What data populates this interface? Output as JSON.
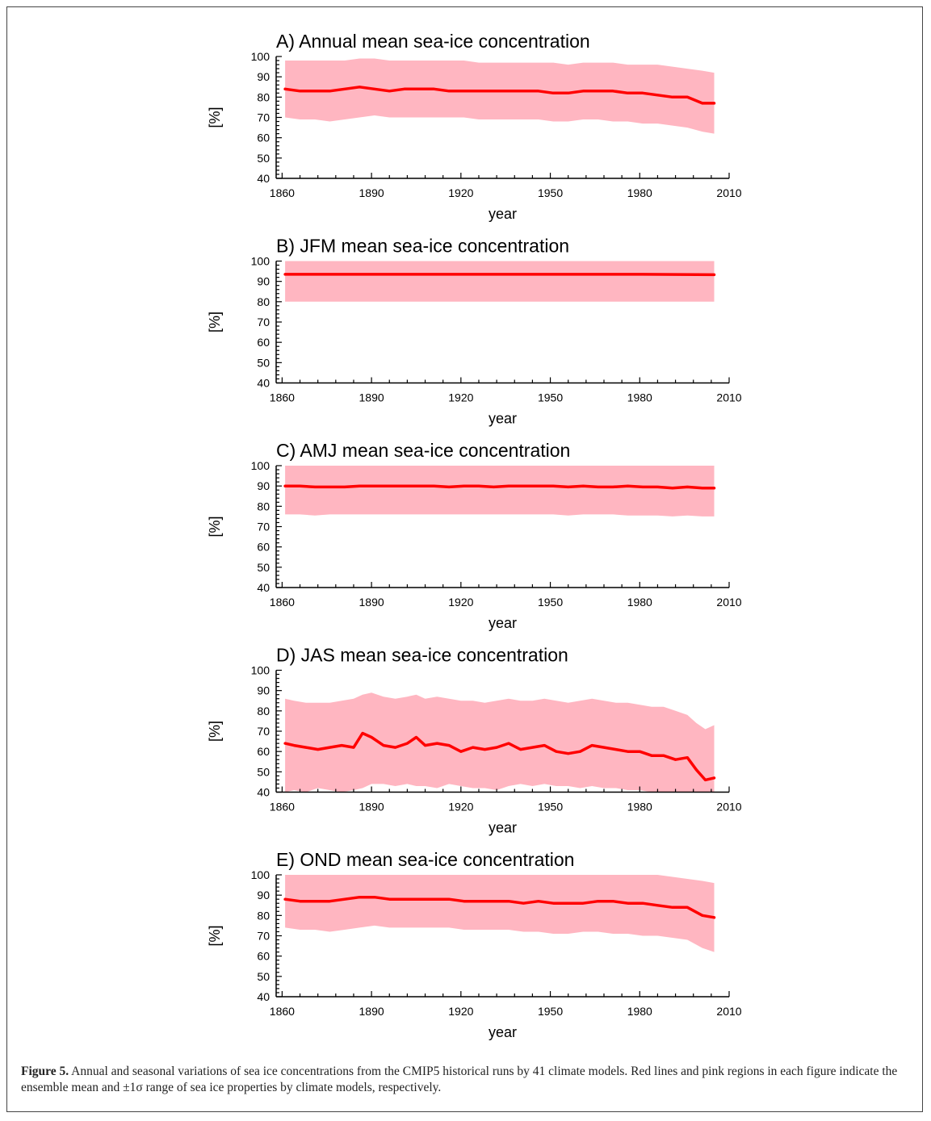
{
  "figure": {
    "caption_label": "Figure 5.",
    "caption_text": " Annual and seasonal variations of sea ice concentrations from the CMIP5 historical runs by 41 climate models. Red lines and pink regions in each figure indicate the ensemble mean and ±1σ range of sea ice properties by climate models, respectively."
  },
  "colors": {
    "mean_line": "#ff0000",
    "band": "#ffb6c1"
  },
  "chart_data": [
    {
      "type": "line",
      "title": "A) Annual mean sea-ice concentration",
      "xlabel": "year",
      "ylabel": "[%]",
      "xlim": [
        1858,
        2010
      ],
      "ylim": [
        40,
        100
      ],
      "xticks": [
        1860,
        1890,
        1920,
        1950,
        1980,
        2010
      ],
      "yticks": [
        40,
        50,
        60,
        70,
        80,
        90,
        100
      ],
      "x": [
        1861,
        1866,
        1871,
        1876,
        1881,
        1886,
        1891,
        1896,
        1901,
        1906,
        1911,
        1916,
        1921,
        1926,
        1931,
        1936,
        1941,
        1946,
        1951,
        1956,
        1961,
        1966,
        1971,
        1976,
        1981,
        1986,
        1991,
        1996,
        2001,
        2005
      ],
      "mean": [
        84,
        83,
        83,
        83,
        84,
        85,
        84,
        83,
        84,
        84,
        84,
        83,
        83,
        83,
        83,
        83,
        83,
        83,
        82,
        82,
        83,
        83,
        83,
        82,
        82,
        81,
        80,
        80,
        77,
        77
      ],
      "lower": [
        70,
        69,
        69,
        68,
        69,
        70,
        71,
        70,
        70,
        70,
        70,
        70,
        70,
        69,
        69,
        69,
        69,
        69,
        68,
        68,
        69,
        69,
        68,
        68,
        67,
        67,
        66,
        65,
        63,
        62
      ],
      "upper": [
        98,
        98,
        98,
        98,
        98,
        99,
        99,
        98,
        98,
        98,
        98,
        98,
        98,
        97,
        97,
        97,
        97,
        97,
        97,
        96,
        97,
        97,
        97,
        96,
        96,
        96,
        95,
        94,
        93,
        92
      ]
    },
    {
      "type": "line",
      "title": "B) JFM mean sea-ice concentration",
      "xlabel": "year",
      "ylabel": "[%]",
      "xlim": [
        1858,
        2010
      ],
      "ylim": [
        40,
        100
      ],
      "xticks": [
        1860,
        1890,
        1920,
        1950,
        1980,
        2010
      ],
      "yticks": [
        40,
        50,
        60,
        70,
        80,
        90,
        100
      ],
      "x": [
        1861,
        1881,
        1901,
        1921,
        1941,
        1961,
        1981,
        2005
      ],
      "mean": [
        93.5,
        93.5,
        93.5,
        93.5,
        93.5,
        93.5,
        93.5,
        93.3
      ],
      "lower": [
        80,
        80,
        80,
        80,
        80,
        80,
        80,
        80
      ],
      "upper": [
        100,
        100,
        100,
        100,
        100,
        100,
        100,
        100
      ]
    },
    {
      "type": "line",
      "title": "C) AMJ mean sea-ice concentration",
      "xlabel": "year",
      "ylabel": "[%]",
      "xlim": [
        1858,
        2010
      ],
      "ylim": [
        40,
        100
      ],
      "xticks": [
        1860,
        1890,
        1920,
        1950,
        1980,
        2010
      ],
      "yticks": [
        40,
        50,
        60,
        70,
        80,
        90,
        100
      ],
      "x": [
        1861,
        1866,
        1871,
        1876,
        1881,
        1886,
        1891,
        1896,
        1901,
        1906,
        1911,
        1916,
        1921,
        1926,
        1931,
        1936,
        1941,
        1946,
        1951,
        1956,
        1961,
        1966,
        1971,
        1976,
        1981,
        1986,
        1991,
        1996,
        2001,
        2005
      ],
      "mean": [
        90,
        90,
        89.5,
        89.5,
        89.5,
        90,
        90,
        90,
        90,
        90,
        90,
        89.5,
        90,
        90,
        89.5,
        90,
        90,
        90,
        90,
        89.5,
        90,
        89.5,
        89.5,
        90,
        89.5,
        89.5,
        89,
        89.5,
        89,
        89
      ],
      "lower": [
        76,
        76,
        75.5,
        76,
        76,
        76,
        76,
        76,
        76,
        76,
        76,
        76,
        76,
        76,
        76,
        76,
        76,
        76,
        76,
        75.5,
        76,
        76,
        76,
        75.5,
        75.5,
        75.5,
        75,
        75.5,
        75,
        75
      ],
      "upper": [
        100,
        100,
        100,
        100,
        100,
        100,
        100,
        100,
        100,
        100,
        100,
        100,
        100,
        100,
        100,
        100,
        100,
        100,
        100,
        100,
        100,
        100,
        100,
        100,
        100,
        100,
        100,
        100,
        100,
        100
      ]
    },
    {
      "type": "line",
      "title": "D) JAS mean sea-ice concentration",
      "xlabel": "year",
      "ylabel": "[%]",
      "xlim": [
        1858,
        2010
      ],
      "ylim": [
        40,
        100
      ],
      "xticks": [
        1860,
        1890,
        1920,
        1950,
        1980,
        2010
      ],
      "yticks": [
        40,
        50,
        60,
        70,
        80,
        90,
        100
      ],
      "x": [
        1861,
        1864,
        1868,
        1872,
        1876,
        1880,
        1884,
        1887,
        1890,
        1894,
        1898,
        1902,
        1905,
        1908,
        1912,
        1916,
        1920,
        1924,
        1928,
        1932,
        1936,
        1940,
        1944,
        1948,
        1952,
        1956,
        1960,
        1964,
        1968,
        1972,
        1976,
        1980,
        1984,
        1988,
        1992,
        1996,
        1999,
        2002,
        2005
      ],
      "mean": [
        64,
        63,
        62,
        61,
        62,
        63,
        62,
        69,
        67,
        63,
        62,
        64,
        67,
        63,
        64,
        63,
        60,
        62,
        61,
        62,
        64,
        61,
        62,
        63,
        60,
        59,
        60,
        63,
        62,
        61,
        60,
        60,
        58,
        58,
        56,
        57,
        51,
        46,
        47
      ],
      "lower": [
        40,
        41,
        40,
        42,
        41,
        40,
        41,
        42,
        44,
        44,
        43,
        44,
        43,
        43,
        42,
        44,
        43,
        42,
        42,
        41,
        43,
        44,
        43,
        44,
        43,
        43,
        42,
        43,
        42,
        42,
        41,
        41,
        40,
        40,
        40,
        40,
        40,
        40,
        40
      ],
      "upper": [
        86,
        85,
        84,
        84,
        84,
        85,
        86,
        88,
        89,
        87,
        86,
        87,
        88,
        86,
        87,
        86,
        85,
        85,
        84,
        85,
        86,
        85,
        85,
        86,
        85,
        84,
        85,
        86,
        85,
        84,
        84,
        83,
        82,
        82,
        80,
        78,
        74,
        71,
        73
      ]
    },
    {
      "type": "line",
      "title": "E) OND mean sea-ice concentration",
      "xlabel": "year",
      "ylabel": "[%]",
      "xlim": [
        1858,
        2010
      ],
      "ylim": [
        40,
        100
      ],
      "xticks": [
        1860,
        1890,
        1920,
        1950,
        1980,
        2010
      ],
      "yticks": [
        40,
        50,
        60,
        70,
        80,
        90,
        100
      ],
      "x": [
        1861,
        1866,
        1871,
        1876,
        1881,
        1886,
        1891,
        1896,
        1901,
        1906,
        1911,
        1916,
        1921,
        1926,
        1931,
        1936,
        1941,
        1946,
        1951,
        1956,
        1961,
        1966,
        1971,
        1976,
        1981,
        1986,
        1991,
        1996,
        2001,
        2005
      ],
      "mean": [
        88,
        87,
        87,
        87,
        88,
        89,
        89,
        88,
        88,
        88,
        88,
        88,
        87,
        87,
        87,
        87,
        86,
        87,
        86,
        86,
        86,
        87,
        87,
        86,
        86,
        85,
        84,
        84,
        80,
        79
      ],
      "lower": [
        74,
        73,
        73,
        72,
        73,
        74,
        75,
        74,
        74,
        74,
        74,
        74,
        73,
        73,
        73,
        73,
        72,
        72,
        71,
        71,
        72,
        72,
        71,
        71,
        70,
        70,
        69,
        68,
        64,
        62
      ],
      "upper": [
        100,
        100,
        100,
        100,
        100,
        100,
        100,
        100,
        100,
        100,
        100,
        100,
        100,
        100,
        100,
        100,
        100,
        100,
        100,
        100,
        100,
        100,
        100,
        100,
        100,
        100,
        99,
        98,
        97,
        96
      ]
    }
  ]
}
